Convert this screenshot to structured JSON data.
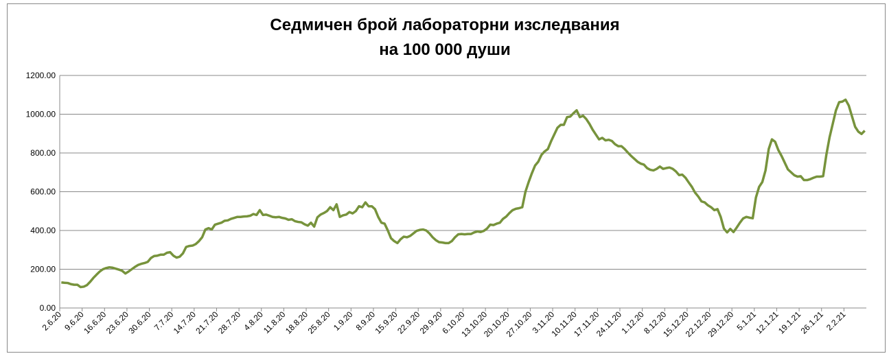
{
  "chart_data": {
    "type": "line",
    "title": [
      "Седмичен брой лабораторни изследвания",
      "на 100 000 души"
    ],
    "color": "#77933c",
    "grid": true,
    "ylim": [
      0,
      1200
    ],
    "yticks": [
      {
        "value": 0,
        "label": "0.00"
      },
      {
        "value": 200,
        "label": "200.00"
      },
      {
        "value": 400,
        "label": "400.00"
      },
      {
        "value": 600,
        "label": "600.00"
      },
      {
        "value": 800,
        "label": "800.00"
      },
      {
        "value": 1000,
        "label": "1000.00"
      },
      {
        "value": 1200,
        "label": "1200.00"
      }
    ],
    "categories": [
      "2.6.20",
      null,
      null,
      null,
      null,
      null,
      null,
      "9.6.20",
      null,
      null,
      null,
      null,
      null,
      null,
      "16.6.20",
      null,
      null,
      null,
      null,
      null,
      null,
      "23.6.20",
      null,
      null,
      null,
      null,
      null,
      null,
      "30.6.20",
      null,
      null,
      null,
      null,
      null,
      null,
      "7.7.20",
      null,
      null,
      null,
      null,
      null,
      null,
      "14.7.20",
      null,
      null,
      null,
      null,
      null,
      null,
      "21.7.20",
      null,
      null,
      null,
      null,
      null,
      null,
      "28.7.20",
      null,
      null,
      null,
      null,
      null,
      null,
      "4.8.20",
      null,
      null,
      null,
      null,
      null,
      null,
      "11.8.20",
      null,
      null,
      null,
      null,
      null,
      null,
      "18.8.20",
      null,
      null,
      null,
      null,
      null,
      null,
      "25.8.20",
      null,
      null,
      null,
      null,
      null,
      null,
      "1.9.20",
      null,
      null,
      null,
      null,
      null,
      null,
      "8.9.20",
      null,
      null,
      null,
      null,
      null,
      null,
      "15.9.20",
      null,
      null,
      null,
      null,
      null,
      null,
      "22.9.20",
      null,
      null,
      null,
      null,
      null,
      null,
      "29.9.20",
      null,
      null,
      null,
      null,
      null,
      null,
      "6.10.20",
      null,
      null,
      null,
      null,
      null,
      null,
      "13.10.20",
      null,
      null,
      null,
      null,
      null,
      null,
      "20.10.20",
      null,
      null,
      null,
      null,
      null,
      null,
      "27.10.20",
      null,
      null,
      null,
      null,
      null,
      null,
      "3.11.20",
      null,
      null,
      null,
      null,
      null,
      null,
      "10.11.20",
      null,
      null,
      null,
      null,
      null,
      null,
      "17.11.20",
      null,
      null,
      null,
      null,
      null,
      null,
      "24.11.20",
      null,
      null,
      null,
      null,
      null,
      null,
      "1.12.20",
      null,
      null,
      null,
      null,
      null,
      null,
      "8.12.20",
      null,
      null,
      null,
      null,
      null,
      null,
      "15.12.20",
      null,
      null,
      null,
      null,
      null,
      null,
      "22.12.20",
      null,
      null,
      null,
      null,
      null,
      null,
      "29.12.20",
      null,
      null,
      null,
      null,
      null,
      null,
      "5.1.21",
      null,
      null,
      null,
      null,
      null,
      null,
      "12.1.21",
      null,
      null,
      null,
      null,
      null,
      null,
      "19.1.21",
      null,
      null,
      null,
      null,
      null,
      null,
      "26.1.21",
      null,
      null,
      null,
      null,
      null,
      null,
      "2.2.21",
      null,
      null,
      null,
      null,
      null,
      null
    ],
    "values": [
      132,
      130,
      129,
      123,
      120,
      120,
      108,
      110,
      118,
      135,
      155,
      172,
      188,
      200,
      206,
      210,
      208,
      203,
      198,
      192,
      178,
      188,
      200,
      212,
      222,
      228,
      232,
      238,
      258,
      268,
      270,
      275,
      275,
      285,
      288,
      270,
      260,
      265,
      282,
      315,
      320,
      322,
      330,
      345,
      365,
      405,
      412,
      405,
      430,
      435,
      440,
      450,
      452,
      460,
      465,
      470,
      470,
      472,
      473,
      476,
      485,
      480,
      505,
      480,
      482,
      476,
      470,
      468,
      470,
      465,
      462,
      455,
      458,
      448,
      444,
      442,
      432,
      425,
      440,
      420,
      468,
      482,
      490,
      500,
      520,
      505,
      535,
      470,
      478,
      482,
      495,
      488,
      500,
      525,
      520,
      545,
      525,
      525,
      510,
      470,
      440,
      435,
      400,
      360,
      345,
      335,
      355,
      368,
      365,
      372,
      385,
      398,
      403,
      405,
      400,
      385,
      365,
      350,
      340,
      338,
      335,
      335,
      345,
      365,
      380,
      382,
      380,
      382,
      382,
      390,
      395,
      392,
      398,
      410,
      430,
      428,
      435,
      440,
      460,
      472,
      490,
      505,
      512,
      515,
      520,
      600,
      650,
      695,
      735,
      755,
      790,
      808,
      820,
      860,
      895,
      930,
      945,
      945,
      985,
      988,
      1005,
      1020,
      985,
      992,
      975,
      950,
      920,
      895,
      870,
      878,
      865,
      868,
      862,
      845,
      835,
      835,
      820,
      802,
      785,
      770,
      755,
      745,
      740,
      722,
      713,
      710,
      718,
      730,
      718,
      722,
      725,
      718,
      705,
      686,
      688,
      672,
      648,
      625,
      595,
      575,
      550,
      545,
      530,
      520,
      505,
      510,
      470,
      410,
      390,
      408,
      392,
      415,
      440,
      462,
      470,
      466,
      463,
      570,
      625,
      650,
      710,
      820,
      870,
      858,
      815,
      785,
      750,
      715,
      700,
      685,
      678,
      680,
      660,
      660,
      665,
      672,
      678,
      678,
      680,
      790,
      880,
      950,
      1020,
      1062,
      1065,
      1075,
      1045,
      990,
      935,
      910,
      898,
      915
    ]
  }
}
